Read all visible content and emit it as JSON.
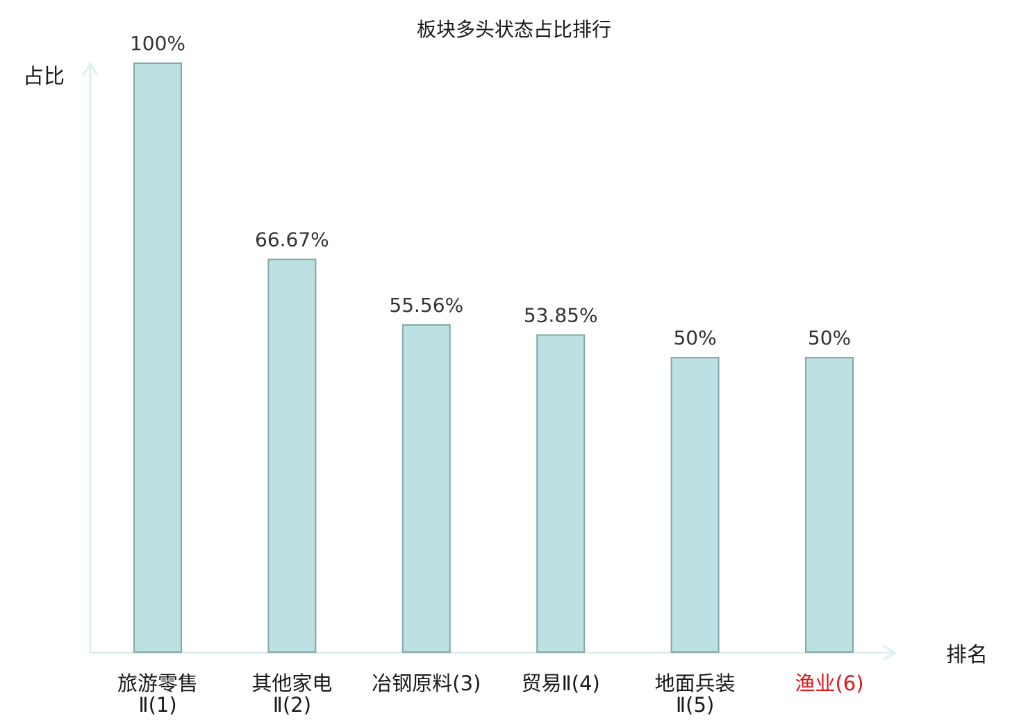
{
  "chart_data": {
    "type": "bar",
    "title": "板块多头状态占比排行",
    "ylabel": "占比",
    "xlabel": "排名",
    "categories": [
      {
        "name": "旅游零售Ⅱ",
        "rank": "(1)",
        "line1": "旅游零售",
        "line2": "Ⅱ(1)",
        "highlight": false
      },
      {
        "name": "其他家电Ⅱ",
        "rank": "(2)",
        "line1": "其他家电",
        "line2": "Ⅱ(2)",
        "highlight": false
      },
      {
        "name": "冶钢原料",
        "rank": "(3)",
        "line1": "冶钢原料(3)",
        "line2": "",
        "highlight": false
      },
      {
        "name": "贸易Ⅱ",
        "rank": "(4)",
        "line1": "贸易Ⅱ(4)",
        "line2": "",
        "highlight": false
      },
      {
        "name": "地面兵装Ⅱ",
        "rank": "(5)",
        "line1": "地面兵装",
        "line2": "Ⅱ(5)",
        "highlight": false
      },
      {
        "name": "渔业",
        "rank": "(6)",
        "line1": "渔业(6)",
        "line2": "",
        "highlight": true
      }
    ],
    "values": [
      100,
      66.67,
      55.56,
      53.85,
      50,
      50
    ],
    "value_labels": [
      "100%",
      "66.67%",
      "55.56%",
      "53.85%",
      "50%",
      "50%"
    ],
    "ylim": [
      0,
      100
    ],
    "grid": false,
    "legend": "none",
    "colors": {
      "bar_fill": "#bde0e3",
      "bar_stroke": "#85a6aa",
      "axis": "#dcf0ee",
      "text": "#1a1a1a",
      "value_text": "#333333",
      "highlight": "#e0191b"
    }
  }
}
